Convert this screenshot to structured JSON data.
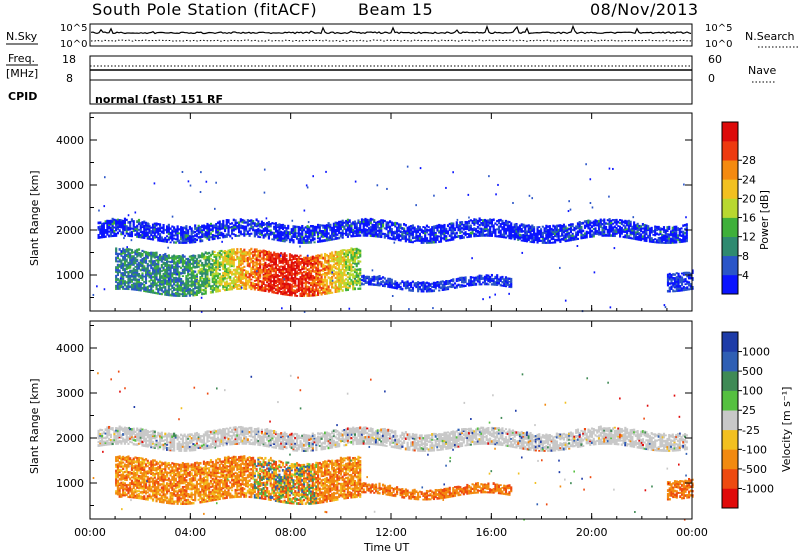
{
  "header": {
    "title": "South Pole Station (fitACF)",
    "beam": "Beam 15",
    "date": "08/Nov/2013"
  },
  "strip_panels": {
    "nsky_label": "N.Sky",
    "nsearch_label": "N.Search",
    "nsky_ticks": [
      "10^5",
      "10^0"
    ],
    "nsearch_ticks": [
      "10^5",
      "10^0"
    ],
    "freq_label_line1": "Freq.",
    "freq_label_line2": "[MHz]",
    "freq_ticks": [
      "18",
      "8"
    ],
    "nave_label": "Nave",
    "nave_ticks": [
      "60",
      "0"
    ],
    "cpid_label": "CPID",
    "cpid_text": "normal (fast) 151 RF"
  },
  "chart_data": [
    {
      "type": "heatmap",
      "name": "power",
      "ylabel": "Slant Range [km]",
      "xlabel": "",
      "x_ticks": [
        "00:00",
        "04:00",
        "08:00",
        "12:00",
        "16:00",
        "20:00",
        "00:00"
      ],
      "y_ticks": [
        "1000",
        "2000",
        "3000",
        "4000"
      ],
      "ylim": [
        200,
        4600
      ],
      "xlim_hours": [
        0,
        24
      ],
      "colorbar": {
        "label": "Power [dB]",
        "ticks": [
          "4",
          "8",
          "12",
          "16",
          "20",
          "24",
          "28"
        ],
        "colors": [
          "#0a14ff",
          "#2a55c8",
          "#2f8a70",
          "#3fb03a",
          "#b8d830",
          "#f2c020",
          "#f48a10",
          "#ee3a10",
          "#dc0a0a"
        ]
      },
      "bands": [
        {
          "name": "upper-echo-band",
          "x": [
            0.3,
            23.8
          ],
          "range_km": [
            1780,
            2150
          ]
        },
        {
          "name": "lower-echo-band",
          "x": [
            1.0,
            10.8
          ],
          "range_km": [
            600,
            1500
          ]
        },
        {
          "name": "late-band",
          "x": [
            10.8,
            16.8
          ],
          "range_km": [
            700,
            900
          ]
        },
        {
          "name": "morning-echo",
          "x": [
            23.0,
            24.0
          ],
          "range_km": [
            700,
            1100
          ]
        }
      ]
    },
    {
      "type": "heatmap",
      "name": "velocity",
      "ylabel": "Slant Range [km]",
      "xlabel": "Time UT",
      "x_ticks": [
        "00:00",
        "04:00",
        "08:00",
        "12:00",
        "16:00",
        "20:00",
        "00:00"
      ],
      "y_ticks": [
        "1000",
        "2000",
        "3000",
        "4000"
      ],
      "ylim": [
        200,
        4600
      ],
      "xlim_hours": [
        0,
        24
      ],
      "colorbar": {
        "label": "Velocity [m s⁻¹]",
        "ticks": [
          "1000",
          "500",
          "100",
          "25",
          "-25",
          "-100",
          "-500",
          "-1000"
        ],
        "colors": [
          "#1e3ca8",
          "#2f5fb4",
          "#3f8a55",
          "#55c040",
          "#c8c8c8",
          "#f2c020",
          "#f28a10",
          "#ee4a10",
          "#e00a0a"
        ]
      },
      "bands": [
        {
          "name": "upper-echo-band",
          "x": [
            0.3,
            23.8
          ],
          "range_km": [
            1780,
            2150
          ]
        },
        {
          "name": "lower-echo-band",
          "x": [
            1.0,
            10.8
          ],
          "range_km": [
            600,
            1500
          ]
        },
        {
          "name": "late-band",
          "x": [
            10.8,
            16.8
          ],
          "range_km": [
            700,
            900
          ]
        },
        {
          "name": "morning-echo",
          "x": [
            23.0,
            24.0
          ],
          "range_km": [
            700,
            1100
          ]
        }
      ]
    }
  ]
}
